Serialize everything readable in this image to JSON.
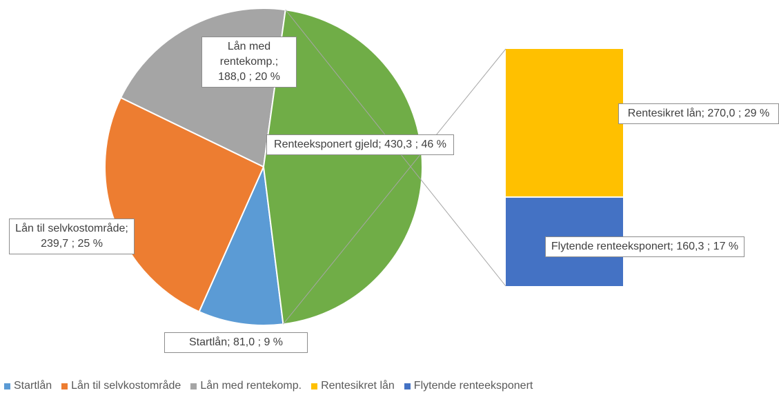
{
  "chart_data": {
    "type": "pie",
    "categories": [
      "Startlån",
      "Lån til selvkostområde",
      "Lån med rentekomp.",
      "Renteeksponert gjeld"
    ],
    "values": [
      81.0,
      239.7,
      188.0,
      430.3
    ],
    "value_labels": [
      "Startlån;  81,0 ; 9 %",
      "Lån til selvkostområde; 239,7 ; 25 %",
      "Lån med rentekomp.; 188,0 ; 20 %",
      "Renteeksponert gjeld; 430,3 ; 46 %"
    ],
    "colors": [
      "#5b9bd5",
      "#ed7d31",
      "#a5a5a5",
      "#70ad47"
    ],
    "breakdown": {
      "type": "bar",
      "categories": [
        "Rentesikret lån",
        "Flytende renteeksponert"
      ],
      "values": [
        270.0,
        160.3
      ],
      "value_labels": [
        "Rentesikret lån;  270,0 ; 29 %",
        "Flytende renteeksponert; 160,3 ; 17 %"
      ],
      "colors": [
        "#ffc000",
        "#4472c4"
      ]
    }
  }
}
